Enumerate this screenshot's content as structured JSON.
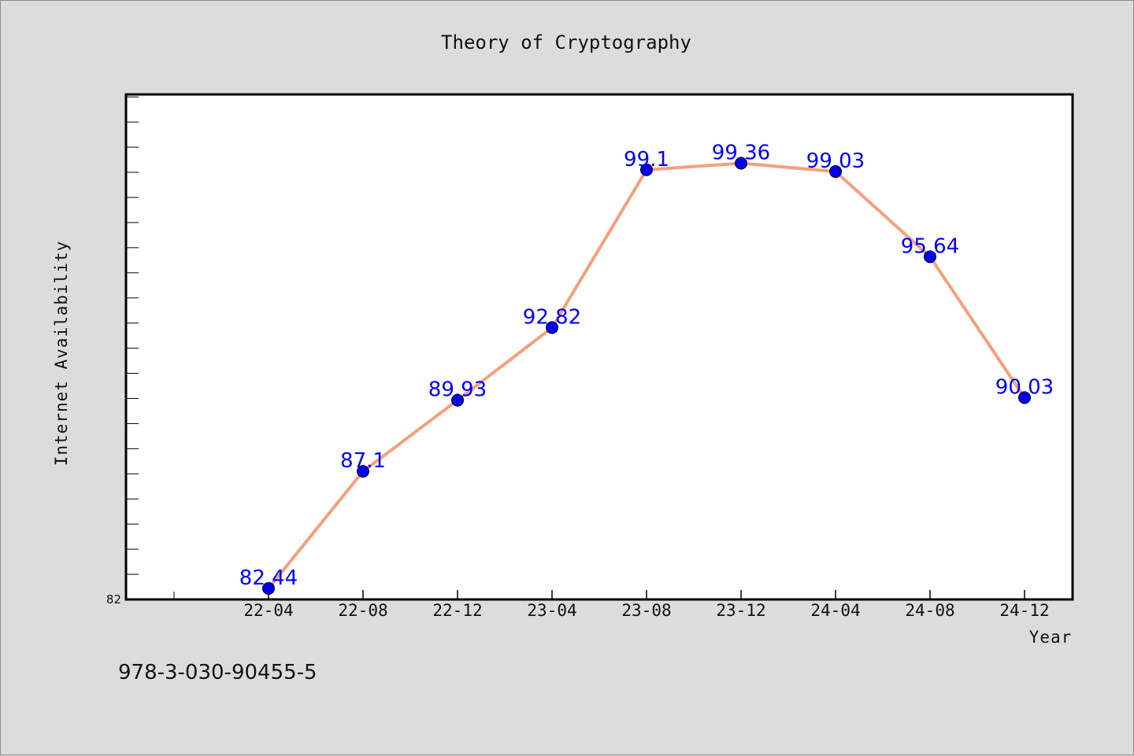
{
  "chart_data": {
    "type": "line",
    "title": "Theory of Cryptography",
    "xlabel": "Year",
    "ylabel": "Internet Availability",
    "categories": [
      "22-04",
      "22-08",
      "22-12",
      "23-04",
      "23-08",
      "23-12",
      "24-04",
      "24-08",
      "24-12"
    ],
    "series": [
      {
        "values": [
          82.44,
          87.1,
          89.93,
          92.82,
          99.1,
          99.36,
          99.03,
          95.64,
          90.03
        ],
        "line_color": "#f4a07c",
        "marker_color": "#0000ee"
      }
    ],
    "ylim": [
      82,
      102.1
    ],
    "yticks": [
      82
    ],
    "y_minor_step": 1,
    "grid": false,
    "legend": "none",
    "data_label_color": "#0000ff"
  },
  "footer": {
    "isbn": "978-3-030-90455-5"
  }
}
